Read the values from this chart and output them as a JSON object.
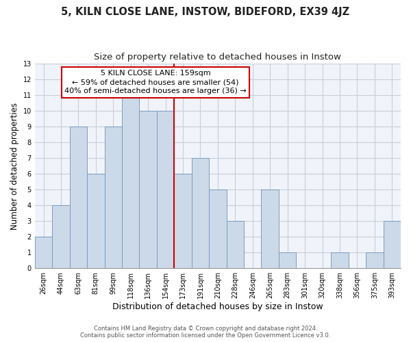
{
  "title": "5, KILN CLOSE LANE, INSTOW, BIDEFORD, EX39 4JZ",
  "subtitle": "Size of property relative to detached houses in Instow",
  "xlabel": "Distribution of detached houses by size in Instow",
  "ylabel": "Number of detached properties",
  "categories": [
    "26sqm",
    "44sqm",
    "63sqm",
    "81sqm",
    "99sqm",
    "118sqm",
    "136sqm",
    "154sqm",
    "173sqm",
    "191sqm",
    "210sqm",
    "228sqm",
    "246sqm",
    "265sqm",
    "283sqm",
    "301sqm",
    "320sqm",
    "338sqm",
    "356sqm",
    "375sqm",
    "393sqm"
  ],
  "values": [
    2,
    4,
    9,
    6,
    9,
    11,
    10,
    10,
    6,
    7,
    5,
    3,
    0,
    5,
    1,
    0,
    0,
    1,
    0,
    1,
    3
  ],
  "bar_color": "#ccd9e8",
  "bar_edge_color": "#7a9cbf",
  "vline_x_index": 7,
  "vline_color": "#cc0000",
  "ylim": [
    0,
    13
  ],
  "yticks": [
    0,
    1,
    2,
    3,
    4,
    5,
    6,
    7,
    8,
    9,
    10,
    11,
    12,
    13
  ],
  "annotation_box_text": "5 KILN CLOSE LANE: 159sqm\n← 59% of detached houses are smaller (54)\n40% of semi-detached houses are larger (36) →",
  "footer_line1": "Contains HM Land Registry data © Crown copyright and database right 2024.",
  "footer_line2": "Contains public sector information licensed under the Open Government Licence v3.0.",
  "background_color": "#ffffff",
  "plot_bg_color": "#f0f4fa",
  "grid_color": "#c8cdd8",
  "title_fontsize": 10.5,
  "subtitle_fontsize": 9.5,
  "tick_fontsize": 7,
  "xlabel_fontsize": 9,
  "ylabel_fontsize": 8.5,
  "annot_fontsize": 8
}
